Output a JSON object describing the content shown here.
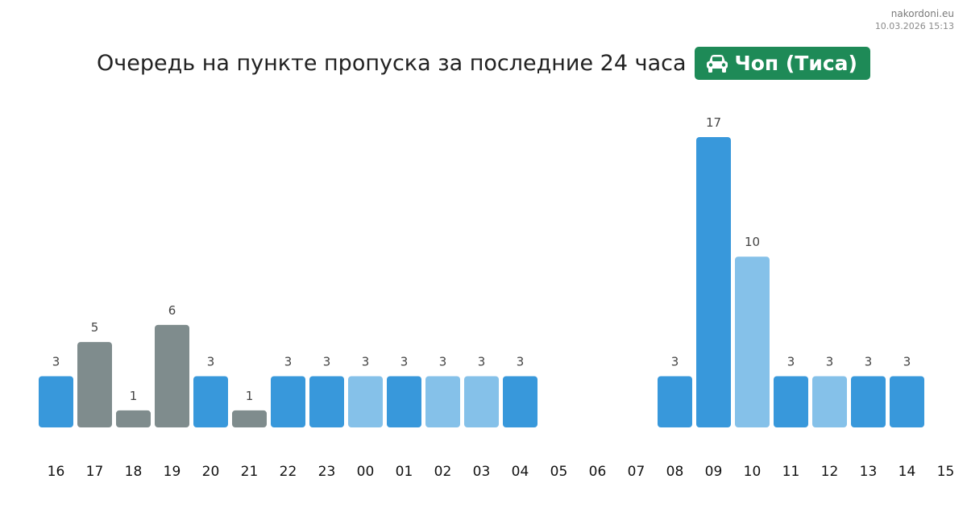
{
  "brand": {
    "site": "nakordoni.eu",
    "timestamp": "10.03.2026 15:13"
  },
  "header": {
    "title": "Очередь на пункте пропуска за последние 24 часа",
    "checkpoint": "Чоп (Тиса)",
    "vehicle_icon": "car-icon",
    "badge_color": "#1e8a57"
  },
  "colors": {
    "dark_blue": "#3898db",
    "light_blue": "#85c1e9",
    "gray": "#7f8c8d",
    "label": "#444444"
  },
  "chart_data": {
    "type": "bar",
    "title": "Очередь на пункте пропуска за последние 24 часа",
    "xlabel": "",
    "ylabel": "",
    "categories": [
      "16",
      "17",
      "18",
      "19",
      "20",
      "21",
      "22",
      "23",
      "00",
      "01",
      "02",
      "03",
      "04",
      "05",
      "06",
      "07",
      "08",
      "09",
      "10",
      "11",
      "12",
      "13",
      "14",
      "15"
    ],
    "values": [
      3,
      5,
      1,
      6,
      3,
      1,
      3,
      3,
      3,
      3,
      3,
      3,
      3,
      null,
      null,
      null,
      3,
      17,
      10,
      3,
      3,
      3,
      3,
      null
    ],
    "bar_colors": [
      "dark_blue",
      "gray",
      "gray",
      "gray",
      "dark_blue",
      "gray",
      "dark_blue",
      "dark_blue",
      "light_blue",
      "dark_blue",
      "light_blue",
      "light_blue",
      "dark_blue",
      null,
      null,
      null,
      "dark_blue",
      "dark_blue",
      "light_blue",
      "dark_blue",
      "light_blue",
      "dark_blue",
      "dark_blue",
      null
    ],
    "ylim": [
      0,
      17
    ],
    "grid": false,
    "legend": "none"
  }
}
